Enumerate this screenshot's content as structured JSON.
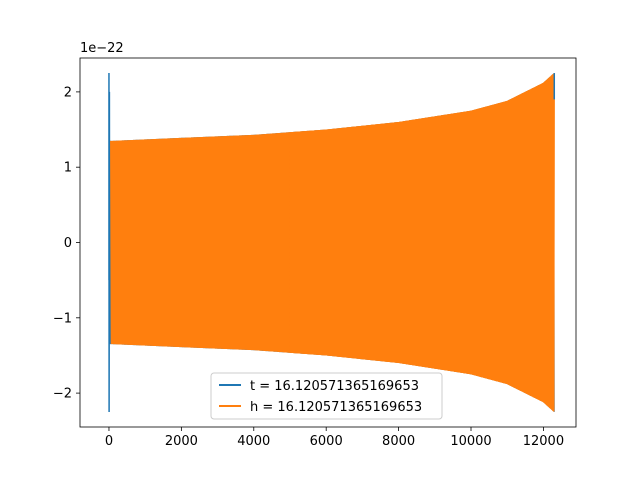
{
  "chart_data": {
    "type": "line",
    "title": "",
    "xlabel": "",
    "ylabel": "",
    "offset_text": "1e−22",
    "xlim": [
      -800,
      12900
    ],
    "ylim": [
      -2.45e-22,
      2.45e-22
    ],
    "xticks": [
      0,
      2000,
      4000,
      6000,
      8000,
      10000,
      12000
    ],
    "xtick_labels": [
      "0",
      "2000",
      "4000",
      "6000",
      "8000",
      "10000",
      "12000"
    ],
    "yticks": [
      -2e-22,
      -1e-22,
      0,
      1e-22,
      2e-22
    ],
    "ytick_labels": [
      "−2",
      "−1",
      "0",
      "1",
      "2"
    ],
    "grid": false,
    "legend_position": "lower center",
    "series": [
      {
        "name": "t = 16.120571365169653",
        "color": "#1f77b4",
        "description_points": {
          "x": [
            0,
            10,
            20,
            40,
            100,
            2000,
            4000,
            6000,
            8000,
            10000,
            11000,
            12000,
            12300
          ],
          "envelope": [
            2.25e-22,
            2.25e-22,
            2e-22,
            1.35e-22,
            1.35e-22,
            1.39e-22,
            1.43e-22,
            1.5e-22,
            1.6e-22,
            1.75e-22,
            1.88e-22,
            2.12e-22,
            2.25e-22
          ]
        }
      },
      {
        "name": "h = 16.120571365169653",
        "color": "#ff7f0e",
        "description_points": {
          "x": [
            0,
            100,
            2000,
            4000,
            6000,
            8000,
            10000,
            11000,
            12000,
            12300
          ],
          "envelope": [
            1.35e-22,
            1.35e-22,
            1.39e-22,
            1.43e-22,
            1.5e-22,
            1.6e-22,
            1.75e-22,
            1.88e-22,
            2.12e-22,
            2.25e-22
          ]
        }
      }
    ]
  }
}
